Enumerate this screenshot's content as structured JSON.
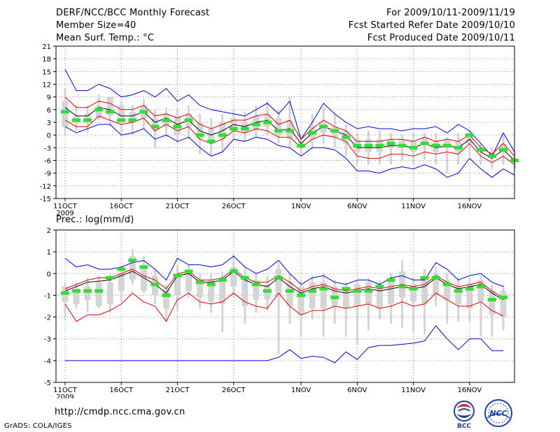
{
  "header": {
    "title": "DERF/NCC/BCC Monthly Forecast",
    "member_size": "Member Size=40",
    "variable": "Mean Surf. Temp.: °C",
    "period": "For 2009/10/11-2009/11/19",
    "started": "Fcst Started Refer Date 2009/10/10",
    "produced": "Fcst Produced Date 2009/10/11"
  },
  "footer": {
    "url": "http://cmdp.ncc.cma.gov.cn",
    "grads": "GrADS: COLA/IGES",
    "logo_left": "BCC",
    "logo_right": "NCC"
  },
  "colors": {
    "mean": "#000000",
    "upper_envelope": "#0000e0",
    "lower_red": "#e00000",
    "box": "#d4d4d4",
    "median": "#33dd33",
    "grid": "#888888"
  },
  "chart_data": [
    {
      "type": "line",
      "title": "Mean Surf. Temp.: °C",
      "x_tick_labels": [
        "11OCT",
        "16OCT",
        "21OCT",
        "26OCT",
        "1NOV",
        "6NOV",
        "11NOV",
        "16NOV"
      ],
      "x_tick_days": [
        1,
        6,
        11,
        16,
        22,
        27,
        32,
        37
      ],
      "year_label": "2009",
      "x_range": [
        1,
        40
      ],
      "ylim": [
        -15,
        21
      ],
      "y_ticks": [
        -15,
        -12,
        -9,
        -6,
        -3,
        0,
        3,
        6,
        9,
        12,
        15,
        18,
        21
      ],
      "grid": true,
      "series": [
        {
          "name": "ensemble mean",
          "color": "#000000",
          "values": [
            6.5,
            4.5,
            4.5,
            6.5,
            6,
            4.5,
            4.5,
            5.5,
            3,
            4,
            2.5,
            3.5,
            1,
            0,
            1,
            2.5,
            2,
            3,
            3.5,
            1,
            1.5,
            -2,
            0.5,
            2,
            1,
            0,
            -3,
            -3,
            -3,
            -2.5,
            -2.5,
            -3,
            -2,
            -3,
            -2.5,
            -3,
            -1,
            -4,
            -5.5,
            -3.5,
            -6
          ]
        },
        {
          "name": "upper envelope",
          "color": "#0000e0",
          "values": [
            15.5,
            10.5,
            10.5,
            12,
            11,
            9,
            9.5,
            10.5,
            9,
            11,
            8,
            9.5,
            7,
            6,
            5.5,
            5,
            4.5,
            6,
            7.5,
            5,
            8,
            -1,
            3,
            7.5,
            5,
            3,
            1.5,
            2,
            1.5,
            1.5,
            1,
            1.5,
            1.5,
            2,
            0.5,
            2.5,
            1,
            -2,
            -5,
            0.5,
            -4
          ]
        },
        {
          "name": "upper red",
          "color": "#e00000",
          "values": [
            9,
            6.5,
            6.5,
            8,
            7.5,
            6,
            6,
            7,
            4.5,
            5,
            4,
            5,
            2.5,
            1.5,
            2.5,
            3.5,
            3.5,
            4.5,
            5,
            2.5,
            3.5,
            -1,
            1.5,
            3.5,
            2,
            1,
            -1.5,
            -1.5,
            -1.5,
            -1,
            -1,
            -1.5,
            -0.5,
            -1.5,
            -1,
            -1.5,
            0,
            -3,
            -4.5,
            -2,
            -5
          ]
        },
        {
          "name": "lower red",
          "color": "#e00000",
          "values": [
            3.5,
            2,
            2,
            4.5,
            3.5,
            2.5,
            3,
            4,
            1,
            2.5,
            1,
            2,
            -1,
            -2,
            -1,
            1,
            0.5,
            1.5,
            1,
            -0.5,
            -0.5,
            -3,
            -1,
            0,
            -0.5,
            -1.5,
            -5,
            -5.5,
            -5.5,
            -4.5,
            -4.5,
            -5,
            -4,
            -4.5,
            -4,
            -4.5,
            -2,
            -5,
            -6.5,
            -5,
            -7
          ]
        },
        {
          "name": "lower envelope",
          "color": "#0000e0",
          "values": [
            2,
            0.5,
            1.5,
            2.5,
            2.5,
            0,
            0.5,
            1.5,
            -1,
            0,
            -1.5,
            -0.5,
            -3,
            -5,
            -4,
            -1,
            -1.5,
            -0.5,
            -1,
            -2.5,
            -3,
            -5,
            -3,
            -3,
            -3.5,
            -5.5,
            -8.5,
            -8.5,
            -9,
            -8,
            -7.5,
            -8,
            -7,
            -8,
            -10,
            -9,
            -5.5,
            -8,
            -10,
            -8,
            -9.5
          ]
        }
      ],
      "boxes": {
        "color": "#d4d4d4",
        "low": [
          2,
          3,
          3,
          4,
          4.5,
          3,
          3,
          4,
          1,
          2,
          0,
          2,
          -1,
          -2,
          -1,
          1,
          0.5,
          1,
          2,
          0,
          -1,
          -3,
          -1,
          0.5,
          -0.5,
          -2,
          -4,
          -4,
          -4,
          -3,
          -3,
          -4,
          -2,
          -4,
          -3,
          -4,
          -2,
          -4,
          -5,
          -4,
          -6
        ],
        "high": [
          8,
          4.5,
          5,
          7,
          9,
          7,
          5.5,
          7,
          4,
          5,
          4.5,
          5,
          3,
          1.5,
          3,
          4,
          3,
          4.5,
          5,
          4,
          3.5,
          -1.5,
          2,
          3,
          2,
          1,
          -1,
          -1,
          -1,
          -1,
          -1,
          -1.5,
          -0.5,
          -1.5,
          -1,
          -1.5,
          0,
          -3,
          -4,
          -2,
          -5.5
        ],
        "wlow": [
          0,
          1,
          0.5,
          3.5,
          2,
          0,
          0,
          1.5,
          -3,
          -0.5,
          -2,
          -1,
          -4.5,
          -5,
          -4,
          -1,
          -1.5,
          -0.5,
          0,
          -2,
          -3,
          -5,
          -3,
          -2,
          -3,
          -5,
          -7,
          -7,
          -7,
          -7,
          -6,
          -7,
          -6,
          -7,
          -9,
          -7,
          -5,
          -7,
          -8,
          -7,
          -8
        ],
        "whigh": [
          11,
          7,
          7,
          9.5,
          9,
          8,
          7,
          8.5,
          6,
          6.5,
          6.5,
          7,
          5,
          4,
          5,
          6,
          5.5,
          7,
          8,
          6,
          9,
          -1,
          5,
          6.5,
          5,
          2.5,
          0.5,
          1,
          1,
          0.5,
          0,
          0.5,
          0.5,
          0.5,
          -0.5,
          0.5,
          1,
          -2,
          -3,
          0,
          -4
        ]
      },
      "median": {
        "color": "#33dd33",
        "values": [
          5.5,
          3.5,
          3.5,
          6,
          5.5,
          3.5,
          3.5,
          5.5,
          2,
          3.5,
          2,
          3.5,
          0,
          -1.5,
          0,
          1.5,
          1.5,
          2.5,
          3,
          1,
          1,
          -2.5,
          0.5,
          2,
          1,
          -0.5,
          -2.5,
          -2.5,
          -2.5,
          -2,
          -2.5,
          -3,
          -2,
          -2.5,
          -2.5,
          -3,
          0,
          -3.5,
          -5,
          -3.5,
          -6
        ]
      }
    },
    {
      "type": "line",
      "title": "Prec.: log(mm/d)",
      "x_tick_labels": [
        "11OCT",
        "16OCT",
        "21OCT",
        "26OCT",
        "1NOV",
        "6NOV",
        "11NOV",
        "16NOV"
      ],
      "x_tick_days": [
        1,
        6,
        11,
        16,
        22,
        27,
        32,
        37
      ],
      "year_label": "2009",
      "x_range": [
        1,
        40
      ],
      "ylim": [
        -5,
        2
      ],
      "y_ticks": [
        -5,
        -4,
        -3,
        -2,
        -1,
        0,
        1,
        2
      ],
      "grid": true,
      "series": [
        {
          "name": "ensemble mean",
          "color": "#000000",
          "values": [
            -0.8,
            -0.6,
            -0.4,
            -0.35,
            -0.3,
            -0.1,
            0.1,
            -0.2,
            -0.5,
            -0.9,
            -0.1,
            0,
            -0.4,
            -0.4,
            -0.3,
            0.1,
            -0.3,
            -0.5,
            -0.6,
            -0.2,
            -0.6,
            -0.9,
            -0.7,
            -0.6,
            -0.8,
            -0.9,
            -0.8,
            -0.7,
            -0.8,
            -0.7,
            -0.6,
            -0.7,
            -0.6,
            -0.2,
            -0.5,
            -0.7,
            -0.6,
            -0.5,
            -0.9,
            -1.2
          ]
        },
        {
          "name": "upper envelope",
          "color": "#0000e0",
          "values": [
            0.7,
            0.3,
            0.4,
            0.2,
            0.2,
            0.3,
            0.5,
            0.6,
            0.2,
            -0.3,
            0.7,
            0.4,
            0.4,
            0.3,
            0.4,
            0.8,
            0.3,
            0,
            0.2,
            0.6,
            0,
            -0.5,
            -0.2,
            -0.1,
            -0.4,
            -0.5,
            -0.3,
            -0.3,
            -0.5,
            -0.2,
            -0.1,
            -0.3,
            -0.3,
            0.5,
            0.2,
            -0.3,
            -0.1,
            0,
            -0.4,
            -0.6
          ]
        },
        {
          "name": "upper red",
          "color": "#e00000",
          "values": [
            -0.7,
            -0.5,
            -0.3,
            -0.2,
            -0.2,
            0,
            0.2,
            -0.1,
            -0.3,
            -0.7,
            0,
            0.1,
            -0.3,
            -0.3,
            -0.2,
            0.2,
            -0.2,
            -0.4,
            -0.4,
            -0.1,
            -0.4,
            -0.8,
            -0.6,
            -0.5,
            -0.7,
            -0.8,
            -0.7,
            -0.6,
            -0.7,
            -0.6,
            -0.5,
            -0.6,
            -0.5,
            -0.1,
            -0.4,
            -0.6,
            -0.5,
            -0.4,
            -0.8,
            -1.1
          ]
        },
        {
          "name": "lower red",
          "color": "#e00000",
          "values": [
            -1.4,
            -2.2,
            -1.9,
            -1.9,
            -1.7,
            -1.4,
            -0.9,
            -1.3,
            -1.5,
            -2.2,
            -1.2,
            -0.9,
            -1.3,
            -1.4,
            -1.3,
            -0.9,
            -1.3,
            -1.5,
            -1.6,
            -0.9,
            -1.5,
            -1.9,
            -1.7,
            -1.7,
            -1.5,
            -1.6,
            -1.5,
            -1.4,
            -1.6,
            -1.5,
            -1.3,
            -1.5,
            -1.4,
            -0.9,
            -1.2,
            -1.5,
            -1.5,
            -1.3,
            -1.7,
            -1.95
          ]
        },
        {
          "name": "lower envelope",
          "color": "#0000e0",
          "values": [
            -4,
            -4,
            -4,
            -4,
            -4,
            -4,
            -4,
            -4,
            -4,
            -4,
            -4,
            -4,
            -4,
            -4,
            -4,
            -4,
            -4,
            -4,
            -4,
            -3.85,
            -3.5,
            -3.9,
            -3.8,
            -3.85,
            -4.1,
            -3.6,
            -3.95,
            -3.4,
            -3.3,
            -3.3,
            -3.25,
            -3.2,
            -3.1,
            -2.4,
            -3,
            -3.5,
            -3,
            -3,
            -3.55,
            -3.55
          ]
        }
      ],
      "boxes": {
        "color": "#d4d4d4",
        "low": [
          -1.3,
          -1.4,
          -1.2,
          -1.5,
          -1.4,
          -0.8,
          -0.3,
          -0.8,
          -1,
          -1.6,
          -1,
          -0.8,
          -1.1,
          -1.3,
          -1.4,
          -0.6,
          -1.5,
          -1.2,
          -1.2,
          -1.1,
          -1.5,
          -1.9,
          -1.6,
          -1.6,
          -1.5,
          -1.6,
          -1.5,
          -1.4,
          -1.6,
          -1.4,
          -1.1,
          -1.3,
          -1.4,
          -1,
          -1.2,
          -1.4,
          -1.6,
          -1.3,
          -1.9,
          -2
        ],
        "high": [
          -0.6,
          -0.7,
          -0.6,
          -0.4,
          -0.4,
          0,
          0.8,
          0.4,
          -0.1,
          -0.7,
          0,
          0,
          -0.3,
          -0.3,
          -0.2,
          0.3,
          -0.1,
          -0.3,
          -0.5,
          0.2,
          -0.4,
          -0.6,
          -0.4,
          -0.4,
          -0.6,
          -0.6,
          -0.5,
          -0.4,
          -0.5,
          -0.3,
          0.1,
          -0.5,
          -0.2,
          0,
          -0.3,
          -0.6,
          -0.5,
          -0.3,
          -0.8,
          -0.8
        ],
        "wlow": [
          -2.1,
          -1.6,
          -1.8,
          -1.6,
          -1.8,
          -1.3,
          -0.5,
          -0.9,
          -1.4,
          -2.2,
          -1.7,
          -1.1,
          -1.6,
          -1.8,
          -2.7,
          -1.1,
          -2.3,
          -1.8,
          -1.7,
          -3.7,
          -2.3,
          -2.9,
          -2.1,
          -2.9,
          -2.3,
          -2.9,
          -3.3,
          -2.6,
          -2.1,
          -2.3,
          -2.5,
          -2.7,
          -2.8,
          -1.5,
          -2.3,
          -2.2,
          -2.2,
          -2.9,
          -2.9,
          -2.6
        ],
        "whigh": [
          -0.4,
          -0.4,
          -0.2,
          -0.1,
          0,
          0.3,
          1.1,
          0.8,
          0.2,
          -0.5,
          0.4,
          0.4,
          0,
          0,
          0.1,
          0.9,
          0.3,
          0,
          -0.1,
          0.5,
          0,
          -0.3,
          -0.1,
          0,
          -0.3,
          -0.4,
          -0.3,
          -0.2,
          -0.3,
          0,
          0.6,
          -0.2,
          0.2,
          0.3,
          0,
          -0.2,
          -0.2,
          -0.1,
          -0.5,
          -0.5
        ]
      },
      "median": {
        "color": "#33dd33",
        "values": [
          -0.9,
          -0.8,
          -0.8,
          -0.8,
          -0.2,
          0.2,
          0.6,
          0.3,
          -0.5,
          -1,
          -0.1,
          0.1,
          -0.4,
          -0.5,
          -0.3,
          0.1,
          -0.2,
          -0.5,
          -0.8,
          -0.2,
          -0.8,
          -1,
          -0.8,
          -0.7,
          -1.1,
          -0.7,
          -0.8,
          -0.8,
          -0.6,
          -0.3,
          -0.6,
          -0.7,
          -0.2,
          -0.2,
          -0.5,
          -0.8,
          -0.7,
          -0.6,
          -1.2,
          -1.1
        ]
      }
    }
  ]
}
